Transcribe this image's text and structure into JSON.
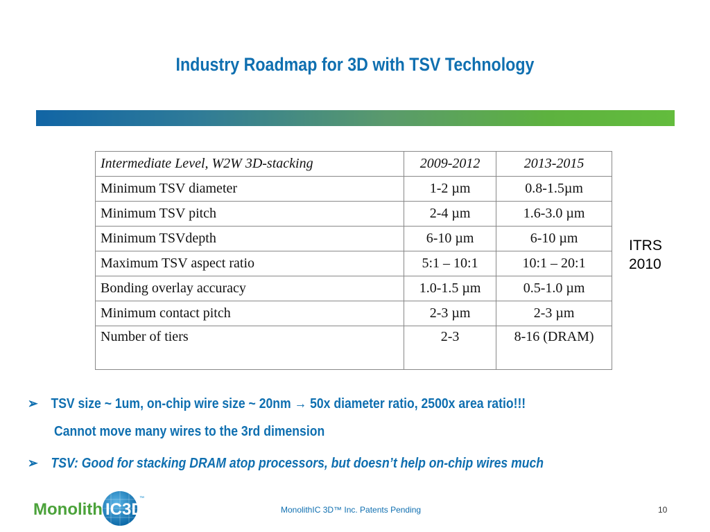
{
  "title": "Industry Roadmap for 3D with TSV Technology",
  "table": {
    "rows": [
      [
        "Intermediate Level, W2W 3D-stacking",
        "2009-2012",
        "2013-2015"
      ],
      [
        "Minimum TSV diameter",
        "1-2 µm",
        "0.8-1.5µm"
      ],
      [
        "Minimum TSV pitch",
        "2-4 µm",
        "1.6-3.0 µm"
      ],
      [
        "Minimum TSVdepth",
        "6-10 µm",
        "6-10 µm"
      ],
      [
        "Maximum TSV aspect ratio",
        "5:1 – 10:1",
        "10:1 – 20:1"
      ],
      [
        "Bonding overlay accuracy",
        "1.0-1.5 µm",
        "0.5-1.0 µm"
      ],
      [
        "Minimum contact pitch",
        "2-3 µm",
        "2-3 µm"
      ],
      [
        "Number of tiers",
        "2-3",
        "8-16 (DRAM)"
      ]
    ]
  },
  "source_label": {
    "line1": "ITRS",
    "line2": "2010"
  },
  "bullets": {
    "b1_prefix": "TSV size ~ 1um, on-chip wire size ~ 20nm ",
    "b1_arrow": "→",
    "b1_suffix": " 50x diameter ratio, 2500x area ratio!!!",
    "b1_cont": "Cannot move many wires to the 3rd dimension",
    "b2": "TSV: Good for stacking DRAM atop processors, but doesn’t help on-chip wires much"
  },
  "bullet_glyph": "➢",
  "logo": {
    "part1": "Monolith",
    "part2": "IC3D",
    "tm": "™"
  },
  "footer": "MonolithIC 3D™ Inc. Patents Pending",
  "page_number": "10",
  "colors": {
    "title": "#0f6fb0",
    "logo_green": "#4ba23a",
    "logo_blue": "#1a8fd0"
  }
}
